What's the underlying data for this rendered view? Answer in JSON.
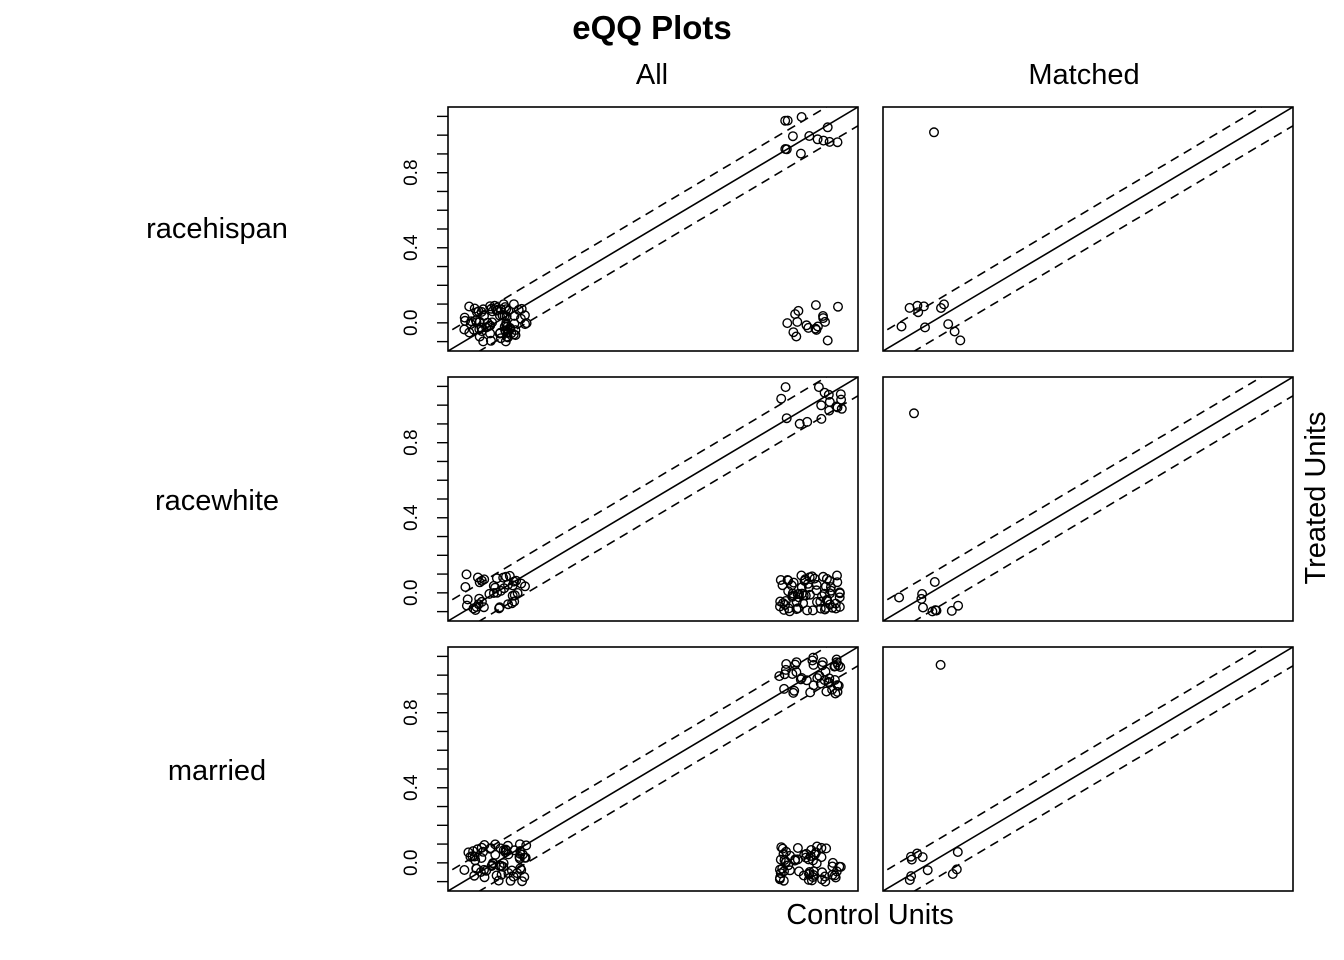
{
  "figure": {
    "title": "eQQ Plots",
    "column_labels": [
      "All",
      "Matched"
    ],
    "xlabel": "Control Units",
    "ylabel": "Treated Units"
  },
  "chart_data": [
    {
      "type": "scatter",
      "variable": "racehispan",
      "panel": "All",
      "ylim": [
        -0.15,
        1.15
      ],
      "yticks": [
        "0.0",
        "0.4",
        "0.8"
      ],
      "ytick_values": [
        0,
        0.4,
        0.8
      ],
      "reference_line": "y = x",
      "band_lines": [
        "y = x + 0.1",
        "y = x - 0.1"
      ],
      "clusters": [
        {
          "x": 0.0,
          "y": 0.0,
          "n": 75
        },
        {
          "x": 1.0,
          "y": 1.0,
          "n": 13
        },
        {
          "x": 1.0,
          "y": 0.0,
          "n": 17
        }
      ]
    },
    {
      "type": "scatter",
      "variable": "racehispan",
      "panel": "Matched",
      "ylim": [
        -0.15,
        1.15
      ],
      "reference_line": "y = x",
      "band_lines": [
        "y = x + 0.1",
        "y = x - 0.1"
      ],
      "clusters": [
        {
          "x": 0.0,
          "y": 0.0,
          "n": 11
        },
        {
          "x": 0.0,
          "y": 1.0,
          "n": 1
        }
      ]
    },
    {
      "type": "scatter",
      "variable": "racewhite",
      "panel": "All",
      "ylim": [
        -0.15,
        1.15
      ],
      "yticks": [
        "0.0",
        "0.4",
        "0.8"
      ],
      "ytick_values": [
        0,
        0.4,
        0.8
      ],
      "reference_line": "y = x",
      "band_lines": [
        "y = x + 0.1",
        "y = x - 0.1"
      ],
      "clusters": [
        {
          "x": 0.0,
          "y": 0.0,
          "n": 40
        },
        {
          "x": 1.0,
          "y": 1.0,
          "n": 17
        },
        {
          "x": 1.0,
          "y": 0.0,
          "n": 68
        }
      ]
    },
    {
      "type": "scatter",
      "variable": "racewhite",
      "panel": "Matched",
      "ylim": [
        -0.15,
        1.15
      ],
      "reference_line": "y = x",
      "band_lines": [
        "y = x + 0.1",
        "y = x - 0.1"
      ],
      "clusters": [
        {
          "x": 0.0,
          "y": 0.0,
          "n": 10
        },
        {
          "x": 0.0,
          "y": 1.0,
          "n": 1
        }
      ]
    },
    {
      "type": "scatter",
      "variable": "married",
      "panel": "All",
      "ylim": [
        -0.15,
        1.15
      ],
      "yticks": [
        "0.0",
        "0.4",
        "0.8"
      ],
      "ytick_values": [
        0,
        0.4,
        0.8
      ],
      "reference_line": "y = x",
      "band_lines": [
        "y = x + 0.1",
        "y = x - 0.1"
      ],
      "clusters": [
        {
          "x": 0.0,
          "y": 0.0,
          "n": 60
        },
        {
          "x": 1.0,
          "y": 1.0,
          "n": 42
        },
        {
          "x": 1.0,
          "y": 0.0,
          "n": 58
        }
      ]
    },
    {
      "type": "scatter",
      "variable": "married",
      "panel": "Matched",
      "ylim": [
        -0.15,
        1.15
      ],
      "reference_line": "y = x",
      "band_lines": [
        "y = x + 0.1",
        "y = x - 0.1"
      ],
      "clusters": [
        {
          "x": 0.0,
          "y": 0.0,
          "n": 10
        },
        {
          "x": 0.0,
          "y": 1.0,
          "n": 1
        }
      ]
    }
  ]
}
